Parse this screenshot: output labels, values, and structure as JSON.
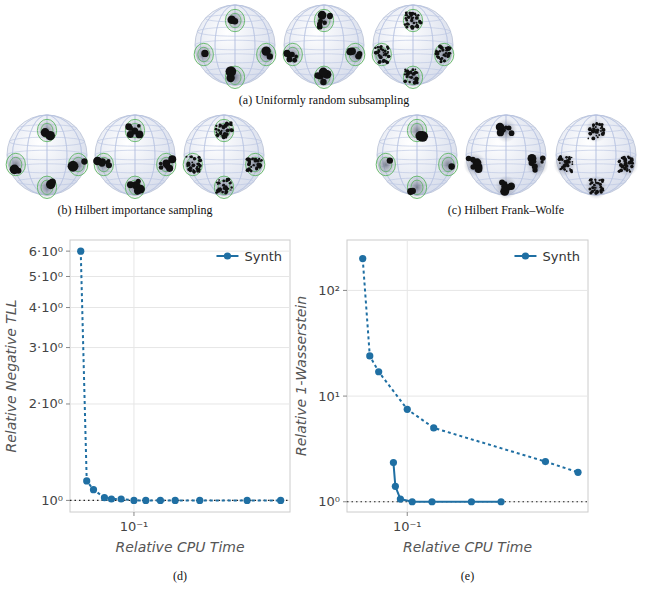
{
  "figure": {
    "panels": [
      {
        "caption": "(a) Uniformly random subsampling"
      },
      {
        "caption": "(b) Hilbert importance sampling"
      },
      {
        "caption": "(c) Hilbert Frank–Wolfe"
      }
    ]
  },
  "chart_data": [
    {
      "type": "line",
      "caption": "(d)",
      "xlabel": "Relative CPU Time",
      "ylabel": "Relative Negative TLL",
      "log": true,
      "grid": true,
      "legend": "upper right",
      "xlim": [
        0.055,
        0.43
      ],
      "ylim": [
        0.92,
        6.5
      ],
      "xticks": [
        {
          "value": 0.1,
          "label": "10⁻¹"
        }
      ],
      "yticks": [
        {
          "value": 1,
          "label": "10⁰"
        },
        {
          "value": 2,
          "label": "2·10⁰"
        },
        {
          "value": 3,
          "label": "3·10⁰"
        },
        {
          "value": 4,
          "label": "4·10⁰"
        },
        {
          "value": 5,
          "label": "5·10⁰"
        },
        {
          "value": 6,
          "label": "6·10⁰"
        }
      ],
      "hline": 1,
      "series": [
        {
          "name": "Synth",
          "color": "#1f6fa3",
          "marker": "circle",
          "line_style": "dotted",
          "x": [
            0.0608,
            0.0643,
            0.0685,
            0.0759,
            0.081,
            0.0887,
            0.1,
            0.1117,
            0.128,
            0.147,
            0.185,
            0.288,
            0.394
          ],
          "values": [
            6.0,
            1.15,
            1.08,
            1.02,
            1.01,
            1.01,
            1.0,
            1.0,
            1.0,
            1.0,
            1.0,
            1.0,
            1.0
          ]
        }
      ]
    },
    {
      "type": "line",
      "caption": "(e)",
      "xlabel": "Relative CPU Time",
      "ylabel": "Relative 1-Wasserstein",
      "log": true,
      "grid": true,
      "legend": "upper right",
      "xlim": [
        0.057,
        0.54
      ],
      "ylim": [
        0.8,
        300
      ],
      "xticks": [
        {
          "value": 0.1,
          "label": "10⁻¹"
        }
      ],
      "yticks": [
        {
          "value": 1,
          "label": "10⁰"
        },
        {
          "value": 10,
          "label": "10¹"
        },
        {
          "value": 100,
          "label": "10²"
        }
      ],
      "hline": 1,
      "series": [
        {
          "name": "Synth",
          "color": "#1f6fa3",
          "marker": "circle",
          "line_style": "dotted",
          "x": [
            0.066,
            0.0705,
            0.0766,
            0.1,
            0.128,
            0.363,
            0.492
          ],
          "values": [
            200,
            24,
            17,
            7.5,
            5,
            2.4,
            1.9
          ]
        },
        {
          "name": "Synth",
          "color": "#1f6fa3",
          "marker": "circle",
          "line_style": "solid",
          "x": [
            0.0879,
            0.0895,
            0.0938,
            0.1047,
            0.126,
            0.182,
            0.24
          ],
          "values": [
            2.35,
            1.4,
            1.06,
            1.0,
            1.0,
            1.0,
            1.0
          ]
        }
      ]
    }
  ]
}
